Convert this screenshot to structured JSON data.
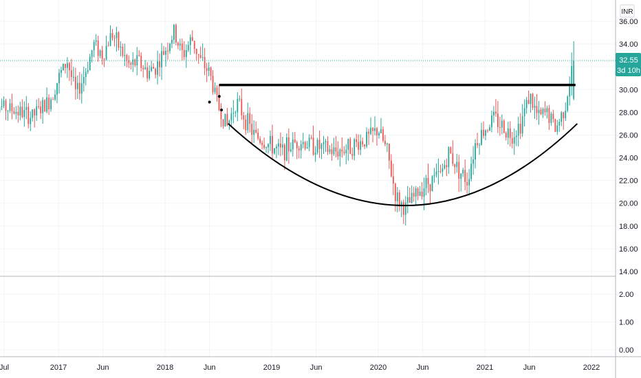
{
  "chart_data": {
    "type": "candlestick",
    "currency": "INR",
    "last_price": "32.55",
    "countdown": "3d 10h",
    "colors": {
      "up": "#26a69a",
      "down": "#ef5350",
      "last_price_badge": "#26a69a",
      "drawing": "#000000",
      "grid": "#f0f3fa",
      "axis_text": "#131722",
      "price_line": "#26a69a"
    },
    "price_axis": {
      "min": 13.5,
      "max": 37.5,
      "ticks": [
        "14.00",
        "16.00",
        "18.00",
        "20.00",
        "22.00",
        "24.00",
        "26.00",
        "28.00",
        "30.00",
        "32.00",
        "34.00",
        "36.00"
      ],
      "tick_values": [
        14,
        16,
        18,
        20,
        22,
        24,
        26,
        28,
        30,
        32,
        34,
        36
      ]
    },
    "lower_pane": {
      "ticks": [
        "0.00",
        "1.00",
        "2.00"
      ],
      "tick_values": [
        0,
        1,
        2
      ],
      "min": -0.3,
      "max": 2.5
    },
    "time_axis": {
      "start": "2016-07",
      "end": "2022-03",
      "ticks": [
        {
          "label": "Jul",
          "date": "2016-07"
        },
        {
          "label": "2017",
          "date": "2017-01"
        },
        {
          "label": "Jun",
          "date": "2017-06"
        },
        {
          "label": "2018",
          "date": "2018-01"
        },
        {
          "label": "Jun",
          "date": "2018-06"
        },
        {
          "label": "2019",
          "date": "2019-01"
        },
        {
          "label": "Jun",
          "date": "2019-06"
        },
        {
          "label": "2020",
          "date": "2020-01"
        },
        {
          "label": "Jun",
          "date": "2020-06"
        },
        {
          "label": "2021",
          "date": "2021-01"
        },
        {
          "label": "Jun",
          "date": "2021-06"
        },
        {
          "label": "2022",
          "date": "2022-01"
        }
      ]
    },
    "price_path": [
      [
        "2016-05",
        28.8
      ],
      [
        "2016-08",
        28.2
      ],
      [
        "2016-10",
        27.6
      ],
      [
        "2016-12",
        29.0
      ],
      [
        "2017-01",
        31.0
      ],
      [
        "2017-02",
        32.5
      ],
      [
        "2017-03",
        29.5
      ],
      [
        "2017-04",
        31.5
      ],
      [
        "2017-05",
        34.0
      ],
      [
        "2017-06",
        33.0
      ],
      [
        "2017-07",
        35.0
      ],
      [
        "2017-08",
        33.5
      ],
      [
        "2017-09",
        32.0
      ],
      [
        "2017-10",
        32.5
      ],
      [
        "2017-11",
        31.5
      ],
      [
        "2017-12",
        32.0
      ],
      [
        "2018-01",
        33.5
      ],
      [
        "2018-02",
        35.0
      ],
      [
        "2018-03",
        33.0
      ],
      [
        "2018-04",
        34.5
      ],
      [
        "2018-05",
        32.5
      ],
      [
        "2018-06",
        31.5
      ],
      [
        "2018-07",
        28.5
      ],
      [
        "2018-08",
        26.8
      ],
      [
        "2018-09",
        29.0
      ],
      [
        "2018-10",
        27.5
      ],
      [
        "2018-11",
        26.0
      ],
      [
        "2018-12",
        25.5
      ],
      [
        "2019-02",
        24.5
      ],
      [
        "2019-04",
        25.5
      ],
      [
        "2019-06",
        25.0
      ],
      [
        "2019-08",
        24.5
      ],
      [
        "2019-10",
        25.0
      ],
      [
        "2019-12",
        25.8
      ],
      [
        "2020-01",
        26.5
      ],
      [
        "2020-02",
        24.5
      ],
      [
        "2020-03",
        20.5
      ],
      [
        "2020-04",
        19.5
      ],
      [
        "2020-05",
        20.5
      ],
      [
        "2020-06",
        21.5
      ],
      [
        "2020-08",
        22.5
      ],
      [
        "2020-09",
        24.5
      ],
      [
        "2020-10",
        23.0
      ],
      [
        "2020-11",
        22.0
      ],
      [
        "2020-12",
        25.5
      ],
      [
        "2021-02",
        27.5
      ],
      [
        "2021-04",
        26.0
      ],
      [
        "2021-05",
        27.0
      ],
      [
        "2021-06",
        29.5
      ],
      [
        "2021-07",
        27.5
      ],
      [
        "2021-08",
        28.0
      ],
      [
        "2021-09",
        26.5
      ],
      [
        "2021-10",
        28.5
      ],
      [
        "2021-11",
        32.5
      ]
    ],
    "drawings": {
      "resistance_line": {
        "from": {
          "date": "2018-07",
          "price": 30.4
        },
        "to": {
          "date": "2021-11",
          "price": 30.4
        }
      },
      "cup_arc": {
        "left": {
          "date": "2018-08",
          "price": 27.0
        },
        "bottom": {
          "date": "2020-04",
          "price": 19.8
        },
        "right": {
          "date": "2021-11",
          "price": 27.0
        }
      },
      "dots": [
        {
          "date": "2018-06",
          "price": 28.9
        },
        {
          "date": "2018-07",
          "price": 29.4
        },
        {
          "date": "2018-07",
          "price": 28.2
        }
      ]
    }
  }
}
